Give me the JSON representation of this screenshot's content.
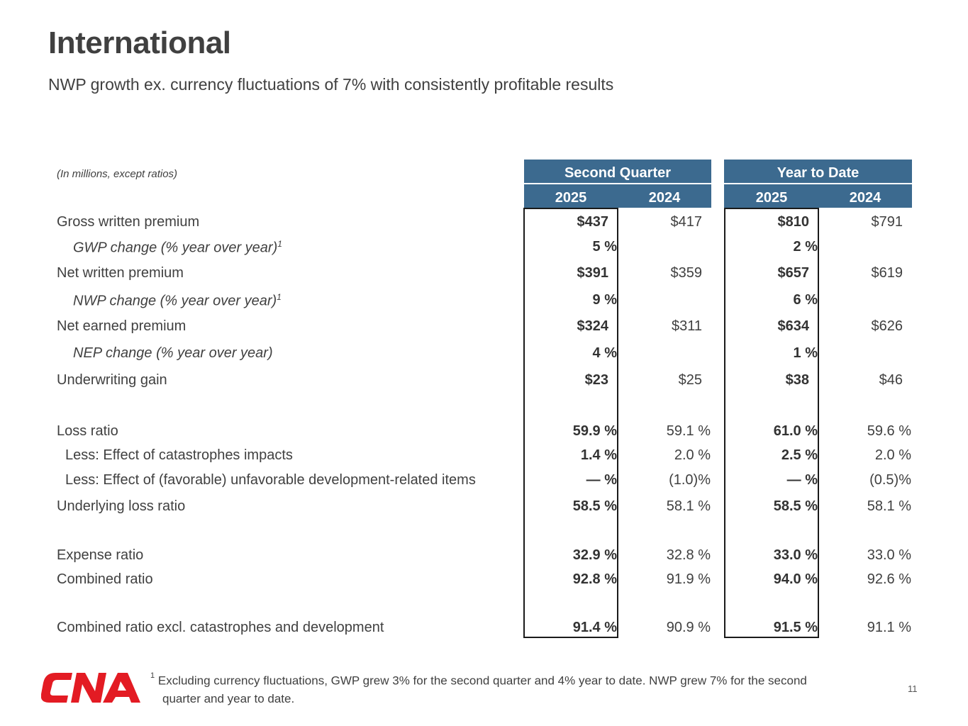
{
  "title": "International",
  "subtitle": "NWP growth ex. currency fluctuations of 7% with consistently profitable results",
  "units_note": "(In millions, except ratios)",
  "headers": {
    "second_quarter": "Second Quarter",
    "year_to_date": "Year to Date",
    "q_2025": "2025",
    "q_2024": "2024",
    "ytd_2025": "2025",
    "ytd_2024": "2024"
  },
  "rows": [
    {
      "label": "Gross written premium",
      "sup": "",
      "q25": "$437",
      "q24": "$417",
      "y25": "$810",
      "y24": "$791"
    },
    {
      "label": "GWP change (% year over year)",
      "sup": "1",
      "q25": "5 %",
      "q24": "",
      "y25": "2 %",
      "y24": ""
    },
    {
      "label": "Net written premium",
      "sup": "",
      "q25": "$391",
      "q24": "$359",
      "y25": "$657",
      "y24": "$619"
    },
    {
      "label": "NWP change (% year over year)",
      "sup": "1",
      "q25": "9 %",
      "q24": "",
      "y25": "6 %",
      "y24": ""
    },
    {
      "label": "Net earned premium",
      "sup": "",
      "q25": "$324",
      "q24": "$311",
      "y25": "$634",
      "y24": "$626"
    },
    {
      "label": "NEP change (% year over year)",
      "sup": "",
      "q25": "4 %",
      "q24": "",
      "y25": "1 %",
      "y24": ""
    },
    {
      "label": "Underwriting gain",
      "sup": "",
      "q25": "$23",
      "q24": "$25",
      "y25": "$38",
      "y24": "$46"
    },
    {
      "label": "Loss ratio",
      "sup": "",
      "q25": "59.9 %",
      "q24": "59.1 %",
      "y25": "61.0 %",
      "y24": "59.6 %"
    },
    {
      "label": "Less: Effect of catastrophes impacts",
      "sup": "",
      "q25": "1.4 %",
      "q24": "2.0 %",
      "y25": "2.5 %",
      "y24": "2.0 %"
    },
    {
      "label": "Less: Effect of (favorable) unfavorable development-related items",
      "sup": "",
      "q25": "— %",
      "q24": "(1.0)%",
      "y25": "— %",
      "y24": "(0.5)%"
    },
    {
      "label": "Underlying loss ratio",
      "sup": "",
      "q25": "58.5 %",
      "q24": "58.1 %",
      "y25": "58.5 %",
      "y24": "58.1 %"
    },
    {
      "label": "Expense ratio",
      "sup": "",
      "q25": "32.9 %",
      "q24": "32.8 %",
      "y25": "33.0 %",
      "y24": "33.0 %"
    },
    {
      "label": "Combined ratio",
      "sup": "",
      "q25": "92.8 %",
      "q24": "91.9 %",
      "y25": "94.0 %",
      "y24": "92.6 %"
    },
    {
      "label": "Combined ratio excl. catastrophes and development",
      "sup": "",
      "q25": "91.4 %",
      "q24": "90.9 %",
      "y25": "91.5 %",
      "y24": "91.1 %"
    }
  ],
  "footnote": {
    "marker": "1",
    "line1": "Excluding currency fluctuations, GWP grew 3% for the second quarter and 4% year to date.  NWP grew 7% for the second",
    "line2": "quarter and year to date."
  },
  "logo_text": "CNA",
  "page_number": "11",
  "colors": {
    "header_bg": "#3c6a8f",
    "logo_red": "#e31b23",
    "text": "#404040"
  }
}
